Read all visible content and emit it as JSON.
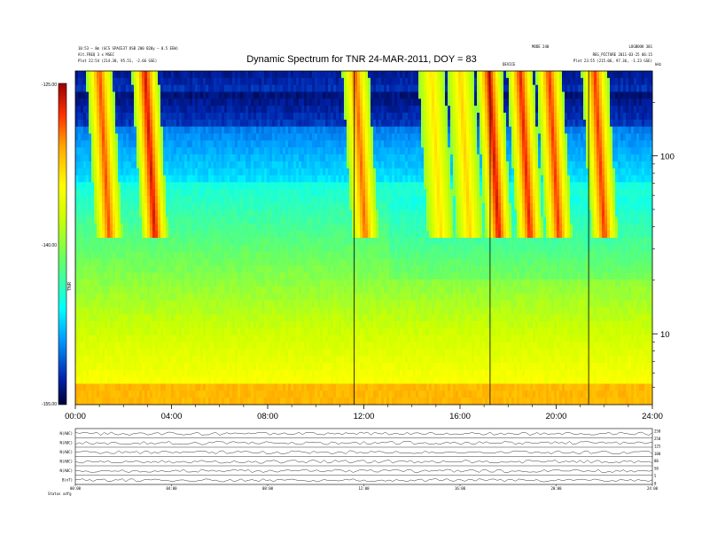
{
  "header": {
    "title": "Dynamic Spectrum for TNR 24-MAR-2011, DOY = 83",
    "info_left": [
      "10:53 – 8m (GCS SPACE3T OSB 200 B20y – 0.5 EEW)",
      "Alt.FREQ 3 x MSEC",
      "Plot   22:54 (214.38, 95.51, -2.66 GSE)"
    ],
    "info_right": [
      "LOGBOOK 301",
      "REG_PICTURE 2011-03-25 06:15",
      "Plot   23:55 (215.06, 97.36, -1.23 GSE)"
    ],
    "info_mid": "MODE 240",
    "marker_label": "DEVICE",
    "top_right_axis_label": "kHz"
  },
  "colorbar": {
    "label": "TNR",
    "tick_labels": [
      "-125.00",
      "-140.00",
      "-155.00"
    ],
    "colors": [
      "#000033",
      "#0033cc",
      "#00bfff",
      "#00ffff",
      "#66ff66",
      "#ccff00",
      "#ffff00",
      "#ffbb00",
      "#ff6600",
      "#cc0000",
      "#800000"
    ]
  },
  "chart_data": {
    "type": "heatmap",
    "title": "Dynamic Spectrum for TNR 24-MAR-2011, DOY = 83",
    "x_axis": {
      "range_hours": [
        0,
        24
      ],
      "tick_labels": [
        "00:00",
        "04:00",
        "08:00",
        "12:00",
        "16:00",
        "20:00",
        "24:00"
      ]
    },
    "y_axis": {
      "scale": "log",
      "unit": "kHz",
      "range": [
        4,
        300
      ],
      "tick_labels": [
        "10",
        "100"
      ]
    },
    "colorbar_range": [
      -155,
      -125
    ],
    "vertical_markers_hours": [
      11.6,
      17.25,
      21.35
    ],
    "type_iii_bursts": [
      {
        "start_hour": 1.0,
        "intensity": 0.85
      },
      {
        "start_hour": 2.9,
        "intensity": 1.0
      },
      {
        "start_hour": 11.65,
        "intensity": 0.8
      },
      {
        "start_hour": 14.8,
        "intensity": 0.5
      },
      {
        "start_hour": 16.0,
        "intensity": 0.55
      },
      {
        "start_hour": 17.2,
        "intensity": 1.0
      },
      {
        "start_hour": 18.5,
        "intensity": 0.95
      },
      {
        "start_hour": 19.7,
        "intensity": 0.9
      },
      {
        "start_hour": 21.6,
        "intensity": 0.9
      }
    ],
    "bottom_panels": {
      "row_labels": [
        "N(A0C)",
        "N(A0C)",
        "N(A0C)",
        "N(A0C)",
        "N(A0C)",
        "B(nT)"
      ],
      "right_tick_labels": [
        "250",
        "250",
        "125",
        "100",
        "80",
        "50",
        "5",
        "0"
      ],
      "x_tick_labels": [
        "00:00",
        "04:00",
        "08:00",
        "12:00",
        "16:00",
        "20:00",
        "24:00"
      ],
      "footer": "Status  xdfg"
    }
  }
}
